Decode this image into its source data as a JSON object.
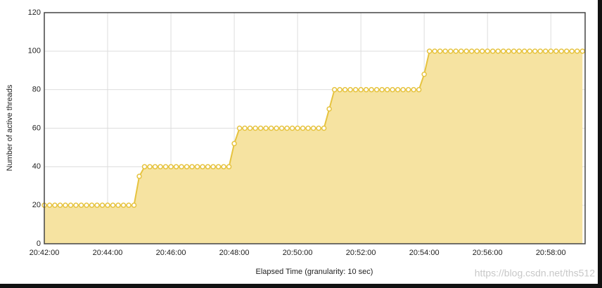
{
  "chart_data": {
    "type": "area_line",
    "xlabel": "Elapsed Time (granularity: 10 sec)",
    "ylabel": "Number of active threads",
    "watermark": "https://blog.csdn.net/ths512",
    "x": [
      "20:42:00",
      "20:42:10",
      "20:42:20",
      "20:42:30",
      "20:42:40",
      "20:42:50",
      "20:43:00",
      "20:43:10",
      "20:43:20",
      "20:43:30",
      "20:43:40",
      "20:43:50",
      "20:44:00",
      "20:44:10",
      "20:44:20",
      "20:44:30",
      "20:44:40",
      "20:44:50",
      "20:45:00",
      "20:45:10",
      "20:45:20",
      "20:45:30",
      "20:45:40",
      "20:45:50",
      "20:46:00",
      "20:46:10",
      "20:46:20",
      "20:46:30",
      "20:46:40",
      "20:46:50",
      "20:47:00",
      "20:47:10",
      "20:47:20",
      "20:47:30",
      "20:47:40",
      "20:47:50",
      "20:48:00",
      "20:48:10",
      "20:48:20",
      "20:48:30",
      "20:48:40",
      "20:48:50",
      "20:49:00",
      "20:49:10",
      "20:49:20",
      "20:49:30",
      "20:49:40",
      "20:49:50",
      "20:50:00",
      "20:50:10",
      "20:50:20",
      "20:50:30",
      "20:50:40",
      "20:50:50",
      "20:51:00",
      "20:51:10",
      "20:51:20",
      "20:51:30",
      "20:51:40",
      "20:51:50",
      "20:52:00",
      "20:52:10",
      "20:52:20",
      "20:52:30",
      "20:52:40",
      "20:52:50",
      "20:53:00",
      "20:53:10",
      "20:53:20",
      "20:53:30",
      "20:53:40",
      "20:53:50",
      "20:54:00",
      "20:54:10",
      "20:54:20",
      "20:54:30",
      "20:54:40",
      "20:54:50",
      "20:55:00",
      "20:55:10",
      "20:55:20",
      "20:55:30",
      "20:55:40",
      "20:55:50",
      "20:56:00",
      "20:56:10",
      "20:56:20",
      "20:56:30",
      "20:56:40",
      "20:56:50",
      "20:57:00",
      "20:57:10",
      "20:57:20",
      "20:57:30",
      "20:57:40",
      "20:57:50",
      "20:58:00",
      "20:58:10",
      "20:58:20",
      "20:58:30",
      "20:58:40",
      "20:58:50",
      "20:59:00"
    ],
    "values": [
      20,
      20,
      20,
      20,
      20,
      20,
      20,
      20,
      20,
      20,
      20,
      20,
      20,
      20,
      20,
      20,
      20,
      20,
      35,
      40,
      40,
      40,
      40,
      40,
      40,
      40,
      40,
      40,
      40,
      40,
      40,
      40,
      40,
      40,
      40,
      40,
      52,
      60,
      60,
      60,
      60,
      60,
      60,
      60,
      60,
      60,
      60,
      60,
      60,
      60,
      60,
      60,
      60,
      60,
      70,
      80,
      80,
      80,
      80,
      80,
      80,
      80,
      80,
      80,
      80,
      80,
      80,
      80,
      80,
      80,
      80,
      80,
      88,
      100,
      100,
      100,
      100,
      100,
      100,
      100,
      100,
      100,
      100,
      100,
      100,
      100,
      100,
      100,
      100,
      100,
      100,
      100,
      100,
      100,
      100,
      100,
      100,
      100,
      100,
      100,
      100,
      100,
      100
    ],
    "color": "#e6c33f",
    "area_color": "#f6e3a1",
    "xlim": [
      "20:42:00",
      "20:59:05"
    ],
    "xticks": [
      "20:42:00",
      "20:44:00",
      "20:46:00",
      "20:48:00",
      "20:50:00",
      "20:52:00",
      "20:54:00",
      "20:56:00",
      "20:58:00"
    ],
    "ylim": [
      0,
      120
    ],
    "yticks": [
      0,
      20,
      40,
      60,
      80,
      100,
      120
    ],
    "grid": true
  }
}
